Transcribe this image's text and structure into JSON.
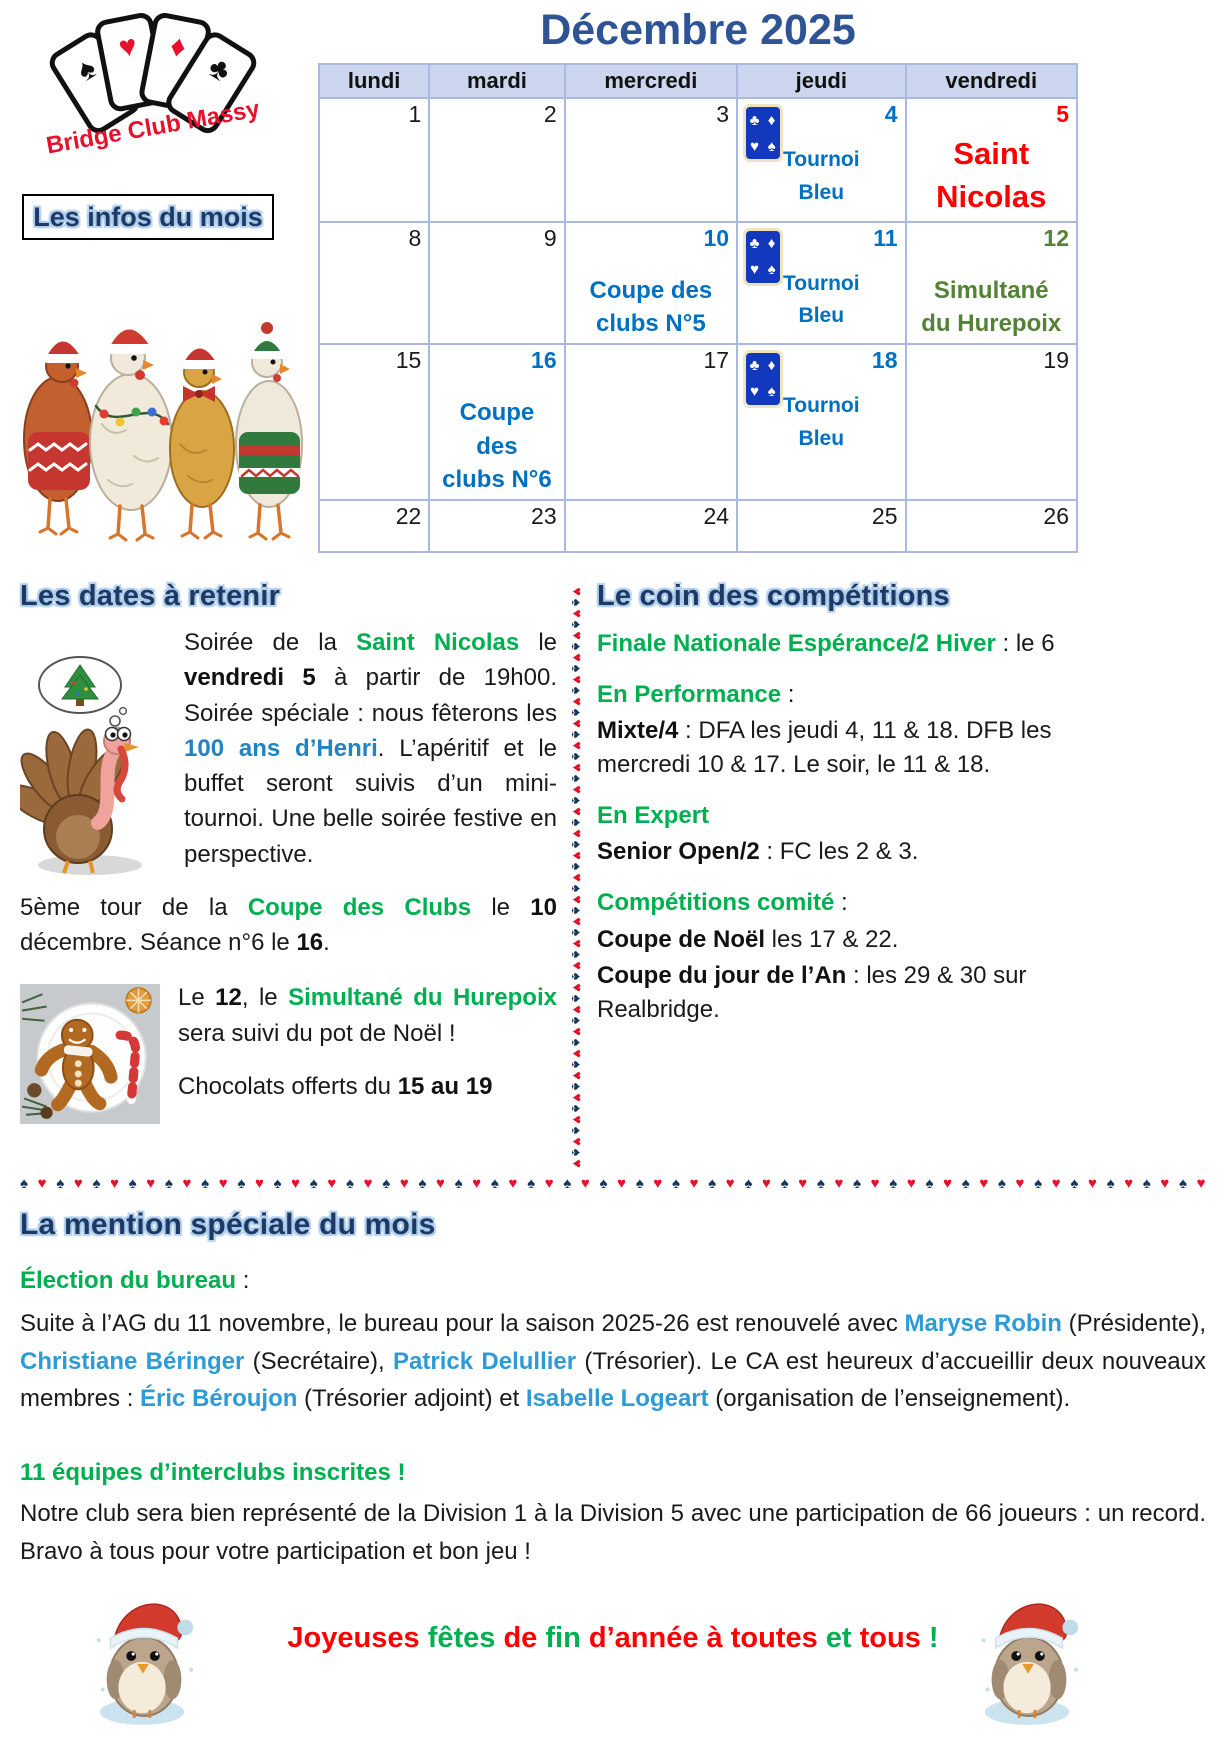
{
  "logo": {
    "club_name": "Bridge Club Massy",
    "suits": [
      "♠",
      "♥",
      "♦",
      "♣"
    ]
  },
  "infos_box_label": "Les infos du mois",
  "calendar": {
    "title": "Décembre 2025",
    "day_headers": [
      "lundi",
      "mardi",
      "mercredi",
      "jeudi",
      "vendredi"
    ],
    "card_suits": [
      "♣",
      "♦",
      "♥",
      "♠"
    ],
    "weeks": [
      {
        "cells": [
          {
            "date": "1",
            "dc": ""
          },
          {
            "date": "2",
            "dc": ""
          },
          {
            "date": "3",
            "dc": ""
          },
          {
            "date": "4",
            "dc": "d-blue",
            "card": true,
            "event": "Tournoi\nBleu",
            "ec": "ev-blue"
          },
          {
            "date": "5",
            "dc": "d-red",
            "event": "Saint\nNicolas",
            "ec": "ev-red-xl"
          }
        ]
      },
      {
        "cells": [
          {
            "date": "8",
            "dc": ""
          },
          {
            "date": "9",
            "dc": ""
          },
          {
            "date": "10",
            "dc": "d-blue",
            "event": "Coupe des\nclubs N°5",
            "ec": "ev-blue-lg"
          },
          {
            "date": "11",
            "dc": "d-blue",
            "card": true,
            "event": "Tournoi\nBleu",
            "ec": "ev-blue"
          },
          {
            "date": "12",
            "dc": "d-green",
            "event": "Simultané\ndu Hurepoix",
            "ec": "ev-green-lg"
          }
        ]
      },
      {
        "cells": [
          {
            "date": "15",
            "dc": ""
          },
          {
            "date": "16",
            "dc": "d-blue",
            "event": "Coupe des\nclubs N°6",
            "ec": "ev-blue-lg"
          },
          {
            "date": "17",
            "dc": ""
          },
          {
            "date": "18",
            "dc": "d-blue",
            "card": true,
            "event": "Tournoi\nBleu",
            "ec": "ev-blue"
          },
          {
            "date": "19",
            "dc": ""
          }
        ]
      },
      {
        "cells": [
          {
            "date": "22",
            "dc": ""
          },
          {
            "date": "23",
            "dc": ""
          },
          {
            "date": "24",
            "dc": ""
          },
          {
            "date": "25",
            "dc": ""
          },
          {
            "date": "26",
            "dc": ""
          }
        ]
      }
    ]
  },
  "dates_section": {
    "heading": "Les dates à retenir",
    "p1": [
      {
        "t": "Soirée de la ",
        "c": "k"
      },
      {
        "t": "Saint Nicolas",
        "c": "g"
      },
      {
        "t": " le ",
        "c": "k"
      },
      {
        "t": "vendredi 5",
        "c": "b"
      },
      {
        "t": " à partir de 19h00. Soirée spéciale : nous fêterons les ",
        "c": "k"
      },
      {
        "t": "100 ans d’Henri",
        "c": "bl2"
      },
      {
        "t": ". L’apéritif et le buffet seront suivis d’un mini-tournoi. Une belle soirée festive en perspective.",
        "c": "k"
      }
    ],
    "p2": [
      {
        "t": "5ème tour de la ",
        "c": "k"
      },
      {
        "t": "Coupe des Clubs",
        "c": "g"
      },
      {
        "t": " le ",
        "c": "k"
      },
      {
        "t": "10",
        "c": "b"
      },
      {
        "t": " décembre. Séance n°6 le ",
        "c": "k"
      },
      {
        "t": "16",
        "c": "b"
      },
      {
        "t": ".",
        "c": "k"
      }
    ],
    "p3": [
      {
        "t": "Le ",
        "c": "k"
      },
      {
        "t": "12",
        "c": "b"
      },
      {
        "t": ", le ",
        "c": "k"
      },
      {
        "t": "Simultané du Hurepoix",
        "c": "g"
      },
      {
        "t": " sera suivi du pot de Noël !",
        "c": "k"
      }
    ],
    "p4": [
      {
        "t": "Chocolats offerts du ",
        "c": "k"
      },
      {
        "t": "15 au 19",
        "c": "b"
      }
    ]
  },
  "competitions_section": {
    "heading": "Le coin des compétitions",
    "lines": {
      "l1": [
        {
          "t": "Finale Nationale Espérance/2 Hiver",
          "c": "g"
        },
        {
          "t": " : le 6",
          "c": "k"
        }
      ],
      "l2": [
        {
          "t": "En Performance",
          "c": "g"
        },
        {
          "t": " :",
          "c": "k"
        }
      ],
      "l3": [
        {
          "t": "Mixte/4",
          "c": "b"
        },
        {
          "t": " : DFA les jeudi 4, 11 & 18. DFB les mercredi 10 & 17.  Le soir, le 11 & 18.",
          "c": "k"
        }
      ],
      "l4": [
        {
          "t": "En Expert",
          "c": "g"
        }
      ],
      "l5": [
        {
          "t": "Senior Open/2",
          "c": "b"
        },
        {
          "t": " : FC les 2 & 3.",
          "c": "k"
        }
      ],
      "l6": [
        {
          "t": "Compétitions comité",
          "c": "g"
        },
        {
          "t": " :",
          "c": "k"
        }
      ],
      "l7": [
        {
          "t": "Coupe de Noël",
          "c": "b"
        },
        {
          "t": " les 17 & 22.",
          "c": "k"
        }
      ],
      "l8": [
        {
          "t": "Coupe du jour de l’An",
          "c": "b"
        },
        {
          "t": " : les 29 & 30 sur Realbridge.",
          "c": "k"
        }
      ]
    }
  },
  "mention_section": {
    "heading": "La mention spéciale du mois",
    "sub1": [
      {
        "t": "Élection du bureau",
        "c": "g"
      },
      {
        "t": " :",
        "c": "k"
      }
    ],
    "p1": [
      {
        "t": "Suite à l’AG du 11 novembre, le bureau pour la saison 2025-26 est renouvelé avec ",
        "c": "k"
      },
      {
        "t": "Maryse Robin",
        "c": "bl"
      },
      {
        "t": " (Présidente), ",
        "c": "k"
      },
      {
        "t": "Christiane Béringer",
        "c": "bl"
      },
      {
        "t": " (Secrétaire), ",
        "c": "k"
      },
      {
        "t": "Patrick Delullier",
        "c": "bl"
      },
      {
        "t": " (Trésorier). Le CA est heureux d’accueillir deux nouveaux membres : ",
        "c": "k"
      },
      {
        "t": "Éric Béroujon",
        "c": "bl"
      },
      {
        "t": " (Trésorier adjoint) et ",
        "c": "k"
      },
      {
        "t": "Isabelle Logeart",
        "c": "bl"
      },
      {
        "t": " (organisation de l’enseignement).",
        "c": "k"
      }
    ],
    "sub2": [
      {
        "t": "11 équipes d’interclubs inscrites !",
        "c": "g"
      }
    ],
    "p2": [
      {
        "t": "Notre club sera bien représenté de la Division 1 à la Division 5 avec une participation de 66 joueurs : un record. Bravo à tous pour votre participation et bon jeu !",
        "c": "k"
      }
    ]
  },
  "greeting": [
    {
      "t": "Joyeuses ",
      "c": "r"
    },
    {
      "t": "fêtes ",
      "c": "g"
    },
    {
      "t": "de ",
      "c": "r"
    },
    {
      "t": "fin ",
      "c": "g"
    },
    {
      "t": "d’année ",
      "c": "r"
    },
    {
      "t": "à toutes ",
      "c": "r"
    },
    {
      "t": "et ",
      "c": "g"
    },
    {
      "t": "tous ",
      "c": "r"
    },
    {
      "t": "!",
      "c": "g"
    }
  ],
  "dividers": {
    "vertical": {
      "red": "♥",
      "blue": "♠",
      "pairs": 27
    },
    "horizontal": {
      "spade": "♠",
      "heart": "♥",
      "pairs": 33
    }
  },
  "colors": {
    "heading_navy": "#1F3864",
    "title_blue": "#2F5496",
    "event_blue": "#0070C0",
    "bright_green": "#00B050",
    "olive_green": "#538135",
    "red": "#FF0000",
    "name_blue": "#2E9BD6",
    "calendar_header_bg": "#CBD5ED"
  }
}
